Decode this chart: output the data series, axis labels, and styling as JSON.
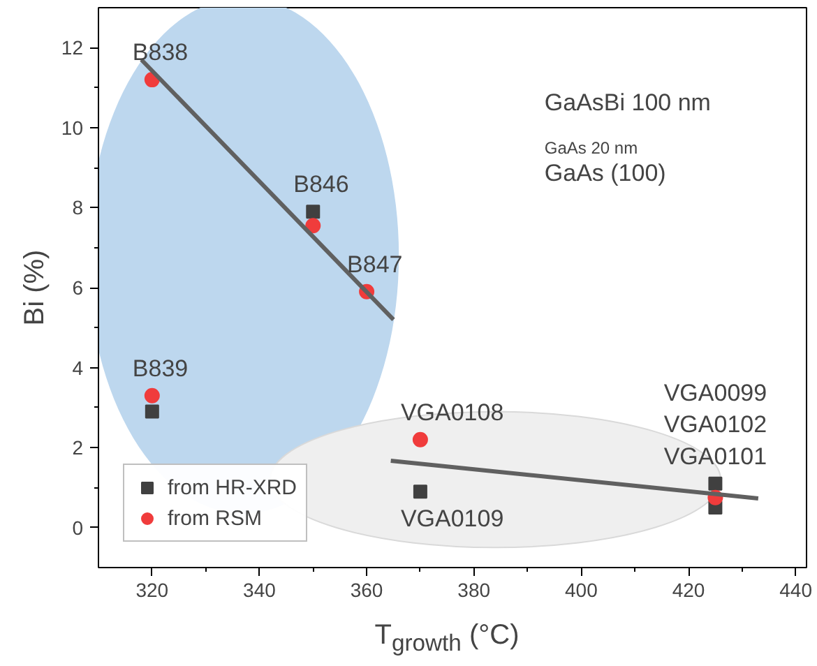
{
  "chart_data": {
    "type": "scatter",
    "xlabel": "T$_{growth}$ (°C)",
    "ylabel": "Bi (%)",
    "xlim": [
      310,
      442
    ],
    "ylim": [
      -1,
      13
    ],
    "xticks": [
      320,
      340,
      360,
      380,
      400,
      420,
      440
    ],
    "yticks": [
      0,
      2,
      4,
      6,
      8,
      10,
      12
    ],
    "grid": false,
    "legend": "bottom left",
    "series": [
      {
        "name": "from HR-XRD",
        "marker": "square",
        "color": "#404040",
        "x": [
          350,
          320,
          370,
          425,
          425
        ],
        "values": [
          7.9,
          2.9,
          0.9,
          1.1,
          0.5
        ]
      },
      {
        "name": "from RSM",
        "marker": "circle",
        "color": "#f03c3c",
        "x": [
          320,
          350,
          360,
          320,
          370,
          425
        ],
        "values": [
          11.2,
          7.55,
          5.9,
          3.3,
          2.2,
          0.75
        ]
      },
      {
        "type": "line",
        "color": "#606060",
        "x": [
          318,
          365
        ],
        "values": [
          11.7,
          5.2
        ]
      },
      {
        "type": "line",
        "color": "#606060",
        "x": [
          364.5,
          433
        ],
        "values": [
          1.67,
          0.73
        ]
      }
    ],
    "annotations": [
      {
        "text": "B838",
        "x": 320,
        "y": 11.2
      },
      {
        "text": "B846",
        "x": 350,
        "y": 7.9
      },
      {
        "text": "B847",
        "x": 360,
        "y": 5.9
      },
      {
        "text": "B839",
        "x": 320,
        "y": 3.3
      },
      {
        "text": "VGA0108",
        "x": 370,
        "y": 2.2
      },
      {
        "text": "VGA0109",
        "x": 370,
        "y": 0.9
      },
      {
        "text": "VGA0099\nVGA0102\nVGA0101",
        "x": 425,
        "y": 1.1
      },
      "GaAsBi 100 nm",
      "GaAs 20 nm",
      "GaAs (100)"
    ]
  }
}
